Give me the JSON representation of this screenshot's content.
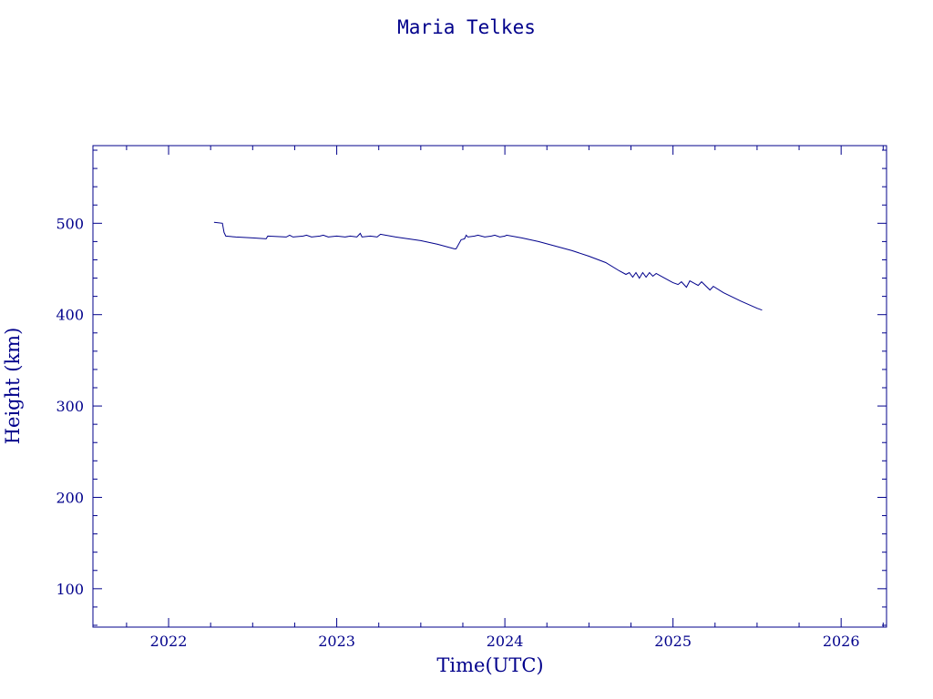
{
  "chart_data": {
    "type": "line",
    "title": "Maria Telkes",
    "xlabel": "Time(UTC)",
    "ylabel": "Height (km)",
    "xlim": [
      2021.55,
      2026.27
    ],
    "ylim": [
      58,
      585
    ],
    "x_major_ticks": [
      2022,
      2023,
      2024,
      2025,
      2026
    ],
    "x_tick_labels": [
      "2022",
      "2023",
      "2024",
      "2025",
      "2026"
    ],
    "x_minor_step": 0.25,
    "y_major_ticks": [
      100,
      200,
      300,
      400,
      500
    ],
    "y_tick_labels": [
      "100",
      "200",
      "300",
      "400",
      "500"
    ],
    "y_minor_step": 20,
    "grid": false,
    "series": [
      {
        "values": [
          [
            2022.27,
            501
          ],
          [
            2022.32,
            500
          ],
          [
            2022.33,
            490
          ],
          [
            2022.34,
            486
          ],
          [
            2022.4,
            485
          ],
          [
            2022.5,
            484
          ],
          [
            2022.58,
            483
          ],
          [
            2022.59,
            486
          ],
          [
            2022.7,
            485
          ],
          [
            2022.72,
            487
          ],
          [
            2022.74,
            485
          ],
          [
            2022.8,
            486
          ],
          [
            2022.82,
            487
          ],
          [
            2022.85,
            485
          ],
          [
            2022.9,
            486
          ],
          [
            2022.92,
            487
          ],
          [
            2022.95,
            485
          ],
          [
            2023.0,
            486
          ],
          [
            2023.05,
            485
          ],
          [
            2023.08,
            486
          ],
          [
            2023.12,
            485
          ],
          [
            2023.14,
            489
          ],
          [
            2023.15,
            485
          ],
          [
            2023.2,
            486
          ],
          [
            2023.24,
            485
          ],
          [
            2023.26,
            488
          ],
          [
            2023.35,
            485
          ],
          [
            2023.5,
            481
          ],
          [
            2023.6,
            477
          ],
          [
            2023.7,
            472
          ],
          [
            2023.71,
            472
          ],
          [
            2023.74,
            482
          ],
          [
            2023.76,
            483
          ],
          [
            2023.77,
            487
          ],
          [
            2023.78,
            485
          ],
          [
            2023.82,
            486
          ],
          [
            2023.84,
            487
          ],
          [
            2023.88,
            485
          ],
          [
            2023.92,
            486
          ],
          [
            2023.94,
            487
          ],
          [
            2023.97,
            485
          ],
          [
            2024.0,
            486
          ],
          [
            2024.01,
            487
          ],
          [
            2024.1,
            484
          ],
          [
            2024.2,
            480
          ],
          [
            2024.3,
            475
          ],
          [
            2024.4,
            470
          ],
          [
            2024.5,
            464
          ],
          [
            2024.6,
            457
          ],
          [
            2024.68,
            448
          ],
          [
            2024.72,
            444
          ],
          [
            2024.74,
            446
          ],
          [
            2024.76,
            441
          ],
          [
            2024.78,
            446
          ],
          [
            2024.8,
            440
          ],
          [
            2024.82,
            446
          ],
          [
            2024.84,
            441
          ],
          [
            2024.86,
            446
          ],
          [
            2024.88,
            442
          ],
          [
            2024.9,
            445
          ],
          [
            2024.95,
            440
          ],
          [
            2025.0,
            435
          ],
          [
            2025.03,
            433
          ],
          [
            2025.05,
            436
          ],
          [
            2025.08,
            430
          ],
          [
            2025.1,
            437
          ],
          [
            2025.15,
            432
          ],
          [
            2025.17,
            436
          ],
          [
            2025.22,
            427
          ],
          [
            2025.24,
            431
          ],
          [
            2025.3,
            424
          ],
          [
            2025.4,
            415
          ],
          [
            2025.5,
            407
          ],
          [
            2025.53,
            405
          ]
        ]
      }
    ]
  }
}
